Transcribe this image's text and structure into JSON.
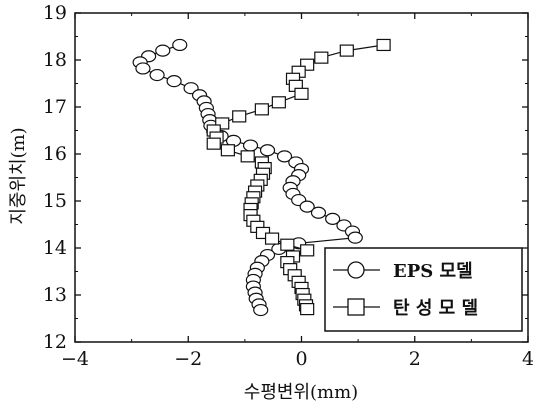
{
  "chart_data": {
    "type": "line",
    "xlabel": "수평변위(mm)",
    "ylabel": "지중위치(m)",
    "xlim": [
      -4,
      4
    ],
    "ylim": [
      12,
      19
    ],
    "xticks": [
      -4,
      -2,
      0,
      2,
      4
    ],
    "yticks": [
      12,
      13,
      14,
      15,
      16,
      17,
      18,
      19
    ],
    "grid": false,
    "legend_position": "bottom-right",
    "series": [
      {
        "name": "EPS 모델",
        "marker": "circle",
        "points": [
          [
            -2.15,
            18.32
          ],
          [
            -2.45,
            18.2
          ],
          [
            -2.7,
            18.08
          ],
          [
            -2.85,
            17.95
          ],
          [
            -2.8,
            17.82
          ],
          [
            -2.55,
            17.68
          ],
          [
            -2.25,
            17.55
          ],
          [
            -1.95,
            17.4
          ],
          [
            -1.8,
            17.25
          ],
          [
            -1.72,
            17.12
          ],
          [
            -1.68,
            16.98
          ],
          [
            -1.65,
            16.85
          ],
          [
            -1.62,
            16.72
          ],
          [
            -1.6,
            16.6
          ],
          [
            -1.55,
            16.48
          ],
          [
            -1.42,
            16.38
          ],
          [
            -1.2,
            16.28
          ],
          [
            -0.9,
            16.18
          ],
          [
            -0.6,
            16.08
          ],
          [
            -0.3,
            15.95
          ],
          [
            -0.1,
            15.82
          ],
          [
            0.0,
            15.68
          ],
          [
            -0.05,
            15.55
          ],
          [
            -0.15,
            15.42
          ],
          [
            -0.2,
            15.28
          ],
          [
            -0.15,
            15.15
          ],
          [
            -0.05,
            15.02
          ],
          [
            0.1,
            14.88
          ],
          [
            0.3,
            14.75
          ],
          [
            0.55,
            14.62
          ],
          [
            0.75,
            14.48
          ],
          [
            0.9,
            14.35
          ],
          [
            0.95,
            14.22
          ],
          [
            -0.05,
            14.1
          ],
          [
            -0.4,
            13.98
          ],
          [
            -0.6,
            13.85
          ],
          [
            -0.7,
            13.72
          ],
          [
            -0.78,
            13.58
          ],
          [
            -0.82,
            13.45
          ],
          [
            -0.85,
            13.32
          ],
          [
            -0.85,
            13.18
          ],
          [
            -0.82,
            13.05
          ],
          [
            -0.8,
            12.92
          ],
          [
            -0.75,
            12.8
          ],
          [
            -0.72,
            12.68
          ]
        ]
      },
      {
        "name": "탄 성 모 델",
        "marker": "square",
        "points": [
          [
            1.45,
            18.32
          ],
          [
            0.8,
            18.2
          ],
          [
            0.35,
            18.05
          ],
          [
            0.1,
            17.9
          ],
          [
            -0.05,
            17.75
          ],
          [
            -0.15,
            17.6
          ],
          [
            -0.1,
            17.45
          ],
          [
            0.0,
            17.28
          ],
          [
            -0.4,
            17.1
          ],
          [
            -0.7,
            16.95
          ],
          [
            -1.1,
            16.8
          ],
          [
            -1.4,
            16.65
          ],
          [
            -1.55,
            16.5
          ],
          [
            -1.5,
            16.35
          ],
          [
            -1.55,
            16.22
          ],
          [
            -1.3,
            16.08
          ],
          [
            -0.95,
            15.95
          ],
          [
            -0.7,
            15.82
          ],
          [
            -0.65,
            15.7
          ],
          [
            -0.68,
            15.58
          ],
          [
            -0.72,
            15.45
          ],
          [
            -0.78,
            15.33
          ],
          [
            -0.82,
            15.2
          ],
          [
            -0.85,
            15.08
          ],
          [
            -0.88,
            14.95
          ],
          [
            -0.9,
            14.83
          ],
          [
            -0.9,
            14.7
          ],
          [
            -0.85,
            14.58
          ],
          [
            -0.78,
            14.45
          ],
          [
            -0.68,
            14.32
          ],
          [
            -0.52,
            14.2
          ],
          [
            -0.25,
            14.07
          ],
          [
            0.1,
            13.95
          ],
          [
            -0.15,
            13.82
          ],
          [
            -0.25,
            13.7
          ],
          [
            -0.2,
            13.55
          ],
          [
            -0.12,
            13.42
          ],
          [
            -0.05,
            13.28
          ],
          [
            0.0,
            13.15
          ],
          [
            0.02,
            13.02
          ],
          [
            0.05,
            12.9
          ],
          [
            0.08,
            12.78
          ],
          [
            0.1,
            12.7
          ]
        ]
      }
    ]
  }
}
